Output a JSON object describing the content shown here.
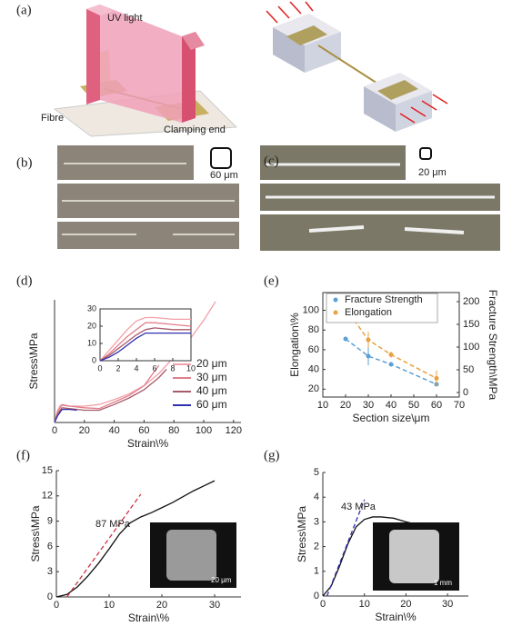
{
  "figure": {
    "panel_labels": [
      "(a)",
      "(b)",
      "(c)",
      "(d)",
      "(e)",
      "(f)",
      "(g)"
    ],
    "illustration_labels": [
      "UV light",
      "Fibre",
      "Clamping end"
    ],
    "scale_labels": [
      "60 μm",
      "20 μm"
    ]
  },
  "chart_data": [
    {
      "type": "line",
      "x_label": "Strain\\%",
      "y_label": "Stress\\MPa",
      "xlim": [
        0,
        125
      ],
      "xticks": [
        0,
        20,
        40,
        60,
        80,
        100,
        120
      ],
      "ylim": [
        0,
        150
      ],
      "yticks": [],
      "legend": "lower-right",
      "frame": false,
      "series": [
        {
          "name": "20 μm",
          "color": "#f2a0a8",
          "x": [
            0,
            2,
            4,
            10,
            20,
            30,
            40,
            50,
            60,
            70,
            80,
            90,
            100,
            108
          ],
          "values": [
            0,
            15,
            21,
            20,
            20,
            22,
            28,
            35,
            45,
            60,
            80,
            100,
            125,
            148
          ]
        },
        {
          "name": "30 μm",
          "color": "#e07f8c",
          "x": [
            0,
            2,
            5,
            10,
            20,
            30,
            40,
            50,
            60,
            70
          ],
          "values": [
            0,
            12,
            22,
            20,
            18,
            17,
            25,
            33,
            45,
            70
          ]
        },
        {
          "name": "40 μm",
          "color": "#a85a6a",
          "x": [
            0,
            2,
            5,
            10,
            20,
            30,
            40,
            50,
            60,
            70,
            75
          ],
          "values": [
            0,
            10,
            18,
            17,
            15,
            15,
            22,
            30,
            40,
            55,
            65
          ]
        },
        {
          "name": "60 μm",
          "color": "#3030b0",
          "x": [
            0,
            2,
            5,
            10,
            15
          ],
          "values": [
            0,
            8,
            16,
            16,
            15
          ]
        }
      ]
    },
    {
      "type": "line",
      "xlim": [
        0,
        10
      ],
      "xticks": [
        0,
        2,
        4,
        6,
        8,
        10
      ],
      "ylim": [
        0,
        30
      ],
      "yticks": [
        0,
        10,
        20,
        30
      ],
      "frame": true,
      "series": [
        {
          "color": "#f2a0a8",
          "x": [
            0,
            1,
            2,
            3,
            4,
            5,
            6,
            8,
            10
          ],
          "values": [
            0,
            6,
            12,
            18,
            23,
            25,
            25,
            24,
            24
          ]
        },
        {
          "color": "#e07f8c",
          "x": [
            0,
            1,
            2,
            3,
            4,
            5,
            6,
            8,
            10
          ],
          "values": [
            0,
            4,
            9,
            14,
            18,
            22,
            22,
            21,
            20
          ]
        },
        {
          "color": "#a85a6a",
          "x": [
            0,
            1,
            2,
            3,
            4,
            5,
            6,
            8,
            10
          ],
          "values": [
            0,
            3,
            7,
            11,
            15,
            18,
            19,
            18,
            18
          ]
        },
        {
          "color": "#3030b0",
          "x": [
            0,
            1,
            2,
            3,
            4,
            5,
            6,
            8,
            10
          ],
          "values": [
            0,
            2,
            5,
            9,
            13,
            16,
            16,
            16,
            16
          ]
        }
      ]
    },
    {
      "type": "line",
      "x_label": "Section size\\μm",
      "y_label": "Elongation\\%",
      "y2_label": "Fracture Strength\\MPa",
      "xlim": [
        10,
        70
      ],
      "xticks": [
        10,
        20,
        30,
        40,
        50,
        60,
        70
      ],
      "ylim": [
        12,
        118
      ],
      "yticks": [
        20,
        40,
        60,
        80,
        100
      ],
      "y2lim": [
        -10,
        220
      ],
      "y2ticks": [
        0,
        50,
        100,
        150,
        200
      ],
      "legend": "upper-left",
      "frame": true,
      "series": [
        {
          "name": "Fracture Strength",
          "color": "#5aa0d8",
          "axis": "y2",
          "marker": true,
          "x": [
            20,
            30,
            40,
            60
          ],
          "values": [
            118,
            80,
            62,
            18
          ],
          "errors": [
            5,
            20,
            5,
            3
          ]
        },
        {
          "name": "Elongation",
          "color": "#e8a040",
          "marker": true,
          "x": [
            20,
            30,
            40,
            60
          ],
          "values": [
            102,
            70,
            55,
            31
          ],
          "errors": [
            4,
            8,
            3,
            8
          ]
        }
      ]
    },
    {
      "type": "line",
      "x_label": "Strain\\%",
      "y_label": "Stress\\MPa",
      "xlim": [
        0,
        35
      ],
      "xticks": [
        0,
        10,
        20,
        30
      ],
      "ylim": [
        0,
        15
      ],
      "yticks": [
        0,
        3,
        6,
        9,
        12,
        15
      ],
      "frame": false,
      "annotations": [
        "87 MPa"
      ],
      "inset_label": "20 μm",
      "series": [
        {
          "color": "#111111",
          "x": [
            0,
            2,
            4,
            6,
            8,
            10,
            12,
            14,
            16,
            18,
            20,
            22,
            24,
            26,
            28,
            30
          ],
          "values": [
            0,
            0.3,
            1.2,
            2.5,
            4,
            5.7,
            7.5,
            8.8,
            9.5,
            10,
            10.6,
            11.2,
            11.9,
            12.6,
            13.2,
            13.8
          ]
        },
        {
          "color": "#d03040",
          "dash": true,
          "x": [
            2,
            16
          ],
          "values": [
            0,
            12.2
          ]
        }
      ]
    },
    {
      "type": "line",
      "x_label": "Strain\\%",
      "y_label": "Stress\\MPa",
      "xlim": [
        0,
        35
      ],
      "xticks": [
        0,
        10,
        20,
        30
      ],
      "ylim": [
        0,
        5
      ],
      "yticks": [
        0,
        1,
        2,
        3,
        4,
        5
      ],
      "frame": false,
      "annotations": [
        "43 MPa"
      ],
      "inset_label": "1 mm",
      "series": [
        {
          "color": "#111111",
          "x": [
            0,
            2,
            4,
            6,
            8,
            10,
            12,
            14,
            17,
            20,
            25,
            30
          ],
          "values": [
            0,
            0.4,
            1.2,
            2.1,
            2.8,
            3.1,
            3.2,
            3.2,
            3.15,
            3.0,
            2.8,
            2.6
          ]
        },
        {
          "color": "#3030b0",
          "dash": true,
          "x": [
            1,
            10
          ],
          "values": [
            0,
            3.9
          ]
        }
      ]
    }
  ]
}
